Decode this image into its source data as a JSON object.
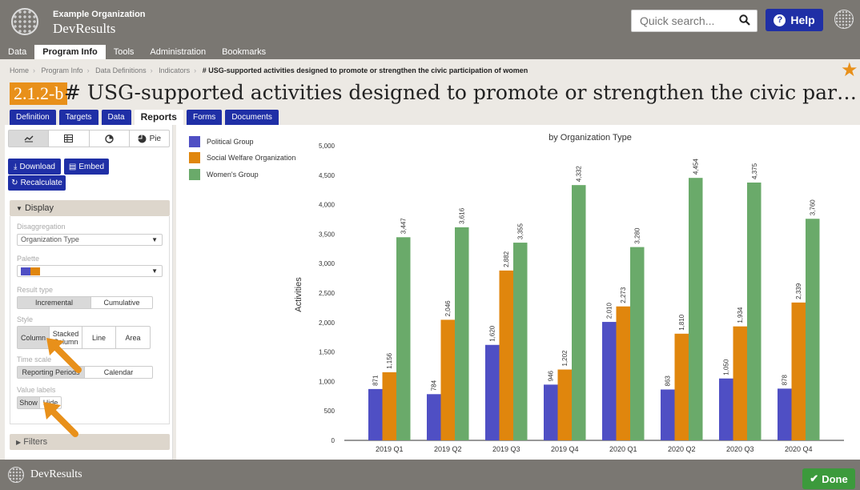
{
  "header": {
    "org_name": "Example Organization",
    "app_name": "DevResults",
    "search_placeholder": "Quick search...",
    "help_label": "Help"
  },
  "nav": [
    "Data",
    "Program Info",
    "Tools",
    "Administration",
    "Bookmarks"
  ],
  "breadcrumb": {
    "items": [
      "Home",
      "Program Info",
      "Data Definitions",
      "Indicators"
    ],
    "current": "# USG-supported activities designed to promote or strengthen the civic participation of women"
  },
  "indicator": {
    "code": "2.1.2-b",
    "title": "# USG-supported activities designed to promote or strengthen the civic participation of women"
  },
  "tabs": [
    "Definition",
    "Targets",
    "Data",
    "Reports",
    "Forms",
    "Documents"
  ],
  "left_panel": {
    "chart_type_pie": "Pie",
    "download_label": "Download",
    "embed_label": "Embed",
    "recalculate_label": "Recalculate",
    "display_label": "Display",
    "disaggregation_label": "Disaggregation",
    "disaggregation_value": "Organization Type",
    "palette_label": "Palette",
    "result_type_label": "Result type",
    "result_type_options": [
      "Incremental",
      "Cumulative"
    ],
    "style_label": "Style",
    "style_options": [
      "Column",
      "Stacked Column",
      "Line",
      "Area"
    ],
    "time_scale_label": "Time scale",
    "time_scale_options": [
      "Reporting Periods",
      "Calendar"
    ],
    "value_labels_label": "Value labels",
    "value_labels_options": [
      "Show",
      "Hide"
    ],
    "filters_label": "Filters"
  },
  "colors": {
    "political": "#4f4fc4",
    "social": "#e0860d",
    "women": "#6aaa6a",
    "accent": "#1f2fa6",
    "arrow": "#e8901a"
  },
  "chart_data": {
    "type": "bar",
    "title": "by Organization Type",
    "ylabel": "Activities",
    "ylim": [
      0,
      5000
    ],
    "yticks": [
      0,
      500,
      1000,
      1500,
      2000,
      2500,
      3000,
      3500,
      4000,
      4500,
      5000
    ],
    "categories": [
      "2019 Q1",
      "2019 Q2",
      "2019 Q3",
      "2019 Q4",
      "2020 Q1",
      "2020 Q2",
      "2020 Q3",
      "2020 Q4"
    ],
    "series": [
      {
        "name": "Political Group",
        "values": [
          871,
          784,
          1620,
          946,
          2010,
          863,
          1050,
          878
        ]
      },
      {
        "name": "Social Welfare Organization",
        "values": [
          1156,
          2046,
          2882,
          1202,
          2273,
          1810,
          1934,
          2339
        ]
      },
      {
        "name": "Women's Group",
        "values": [
          3447,
          3616,
          3355,
          4332,
          3280,
          4454,
          4375,
          3760
        ]
      }
    ]
  },
  "footer": {
    "app_name": "DevResults",
    "done_label": "Done"
  }
}
